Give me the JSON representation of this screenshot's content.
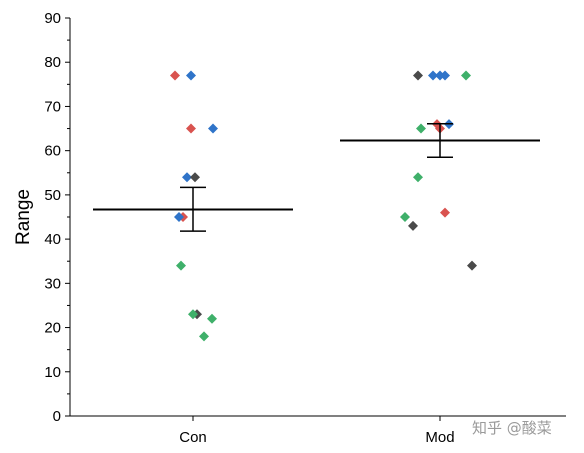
{
  "chart_data": {
    "type": "scatter",
    "categories": [
      "Con",
      "Mod"
    ],
    "ylabel": "Range",
    "xlabel": "",
    "ylim": [
      0,
      90
    ],
    "yticks": [
      0,
      10,
      20,
      30,
      40,
      50,
      60,
      70,
      80,
      90
    ],
    "grid": false,
    "legend": "none",
    "marker": "diamond",
    "series": [
      {
        "color": "#d9534f",
        "points": [
          {
            "category": "Con",
            "y": 77
          },
          {
            "category": "Con",
            "y": 65
          },
          {
            "category": "Con",
            "y": 45
          },
          {
            "category": "Mod",
            "y": 66
          },
          {
            "category": "Mod",
            "y": 65
          },
          {
            "category": "Mod",
            "y": 46
          }
        ]
      },
      {
        "color": "#2f74c9",
        "points": [
          {
            "category": "Con",
            "y": 77
          },
          {
            "category": "Con",
            "y": 65
          },
          {
            "category": "Con",
            "y": 54
          },
          {
            "category": "Con",
            "y": 45
          },
          {
            "category": "Mod",
            "y": 77
          },
          {
            "category": "Mod",
            "y": 77
          },
          {
            "category": "Mod",
            "y": 77
          },
          {
            "category": "Mod",
            "y": 66
          }
        ]
      },
      {
        "color": "#4a4a4a",
        "points": [
          {
            "category": "Con",
            "y": 54
          },
          {
            "category": "Con",
            "y": 23
          },
          {
            "category": "Mod",
            "y": 77
          },
          {
            "category": "Mod",
            "y": 43
          },
          {
            "category": "Mod",
            "y": 34
          }
        ]
      },
      {
        "color": "#3fb06a",
        "points": [
          {
            "category": "Con",
            "y": 34
          },
          {
            "category": "Con",
            "y": 23
          },
          {
            "category": "Con",
            "y": 22
          },
          {
            "category": "Con",
            "y": 18
          },
          {
            "category": "Mod",
            "y": 77
          },
          {
            "category": "Mod",
            "y": 65
          },
          {
            "category": "Mod",
            "y": 54
          },
          {
            "category": "Mod",
            "y": 45
          }
        ]
      }
    ],
    "summary": [
      {
        "category": "Con",
        "mean": 46.7,
        "upper": 51.7,
        "lower": 41.8
      },
      {
        "category": "Mod",
        "mean": 62.3,
        "upper": 66.1,
        "lower": 58.5
      }
    ]
  },
  "watermark": "知乎 @酸菜"
}
